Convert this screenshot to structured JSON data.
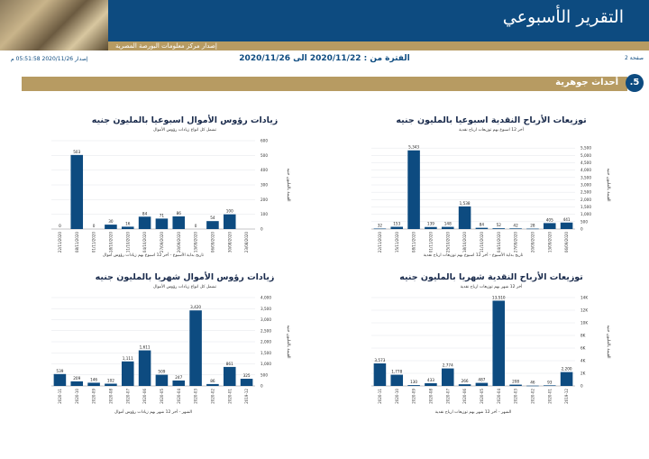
{
  "header": {
    "report_title": "التقرير الأسبوعي",
    "subtitle": "إصدار مركز معلومات البورصة المصرية",
    "page_label": "صفحة 2",
    "period": "الفترة من : 2020/11/22 الى 2020/11/26",
    "issue": "إصدار 2020/11/26 05:51:58 م"
  },
  "section": {
    "number": ".5",
    "title": "أحداث جوهرية"
  },
  "chart_data": [
    {
      "id": "weekly_dividends",
      "type": "bar",
      "title": "توزيعات الأرباح النقدية اسبوعيا بالمليون جنيه",
      "subtitle": "أخر 12 اسبوع بهم توزيعات ارباح نقدية",
      "xlabel": "تاريخ بداية الأسبوع - أخر 12 اسبوع بهم توزيعات ارباح نقدية",
      "ylabel": "القيمة بالمليون جنيه",
      "categories": [
        "22/11/2020",
        "15/11/2020",
        "08/11/2020",
        "01/11/2020",
        "25/10/2020",
        "18/10/2020",
        "11/10/2020",
        "04/10/2020",
        "27/09/2020",
        "20/09/2020",
        "13/09/2020",
        "06/09/2020"
      ],
      "values": [
        32,
        153,
        5343,
        139,
        148,
        1538,
        84,
        52,
        42,
        28,
        405,
        441
      ],
      "ylim": [
        0,
        6000
      ],
      "yticks": [
        "0",
        "500",
        "1,000",
        "1,500",
        "2,000",
        "2,500",
        "3,000",
        "3,500",
        "4,000",
        "4,500",
        "5,000",
        "5,500"
      ]
    },
    {
      "id": "weekly_capital",
      "type": "bar",
      "title": "زيادات رؤوس الأموال اسبوعيا بالمليون جنيه",
      "subtitle": "تشمل كل انواع زيادات رؤوس الأموال",
      "xlabel": "تاريخ بداية الأسبوع - أخر 12 اسبوع بهم زيادات رؤوس أموال",
      "ylabel": "القيمة بالمليون جنيه",
      "categories": [
        "22/11/2020",
        "08/11/2020",
        "01/11/2020",
        "18/10/2020",
        "11/10/2020",
        "04/10/2020",
        "27/09/2020",
        "20/09/2020",
        "13/09/2020",
        "06/09/2020",
        "30/08/2020",
        "23/08/2020"
      ],
      "values": [
        0,
        503,
        0,
        30,
        16,
        84,
        71,
        86,
        0,
        54,
        100,
        null
      ],
      "ylim": [
        0,
        600
      ],
      "yticks": [
        "0",
        "100",
        "200",
        "300",
        "400",
        "500",
        "600"
      ]
    },
    {
      "id": "monthly_dividends",
      "type": "bar",
      "title": "توزيعات الأرباح النقدية شهريا بالمليون جنيه",
      "subtitle": "أخر 12 شهر بهم توزيعات ارباح نقدية",
      "xlabel": "الشهر - أخر 12 شهر بهم توزيعات ارباح نقدية",
      "ylabel": "القيمة بالمليون جنيه",
      "categories": [
        "2020-11",
        "2020-10",
        "2020-09",
        "2020-08",
        "2020-07",
        "2020-06",
        "2020-05",
        "2020-04",
        "2020-03",
        "2020-02",
        "2020-01",
        "2019-12"
      ],
      "values": [
        3573,
        1778,
        130,
        433,
        2774,
        266,
        487,
        13510,
        208,
        46,
        93,
        2200
      ],
      "ylim": [
        0,
        14000
      ],
      "yticks": [
        "0",
        "2K",
        "4K",
        "6K",
        "8K",
        "10K",
        "12K",
        "14K"
      ]
    },
    {
      "id": "monthly_capital",
      "type": "bar",
      "title": "زيادات رؤوس الأموال شهريا بالمليون جنيه",
      "subtitle": "تشمل كل انواع زيادات رؤوس الأموال",
      "xlabel": "الشهر - أخر 12 شهر بهم زيادات رؤوس أموال",
      "ylabel": "القيمة بالمليون جنيه",
      "categories": [
        "2020-11",
        "2020-10",
        "2020-09",
        "2020-08",
        "2020-07",
        "2020-06",
        "2020-05",
        "2020-04",
        "2020-03",
        "2020-02",
        "2020-01",
        "2019-12"
      ],
      "values": [
        539,
        209,
        146,
        102,
        1111,
        1611,
        509,
        247,
        3420,
        86,
        861,
        325
      ],
      "ylim": [
        0,
        4000
      ],
      "yticks": [
        "0",
        "500",
        "1,000",
        "1,500",
        "2,000",
        "2,500",
        "3,000",
        "3,500",
        "4,000"
      ]
    }
  ],
  "colors": {
    "bar": "#0d4b80",
    "accent": "#b79b62"
  }
}
